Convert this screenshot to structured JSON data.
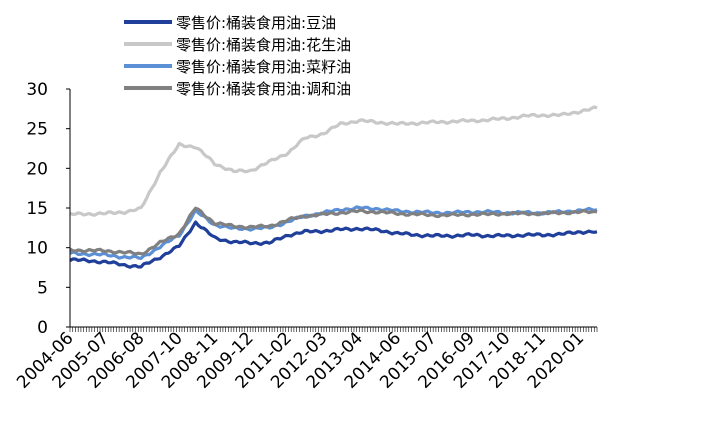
{
  "chart_data": {
    "type": "line",
    "title": "",
    "xlabel": "",
    "ylabel": "",
    "ylim": [
      0,
      30
    ],
    "y_ticks": [
      0,
      5,
      10,
      15,
      20,
      25,
      30
    ],
    "x_tick_labels": [
      "2004-06",
      "2005-07",
      "2006-08",
      "2007-10",
      "2008-11",
      "2009-12",
      "2011-02",
      "2012-03",
      "2013-04",
      "2014-06",
      "2015-07",
      "2016-09",
      "2017-10",
      "2018-11",
      "2020-01"
    ],
    "grid": false,
    "legend_position": "top",
    "x": [
      "2004-06",
      "2005-07",
      "2006-02",
      "2006-08",
      "2007-03",
      "2007-10",
      "2008-04",
      "2008-11",
      "2009-06",
      "2009-12",
      "2010-07",
      "2011-02",
      "2011-08",
      "2012-03",
      "2012-09",
      "2013-04",
      "2013-11",
      "2014-06",
      "2015-01",
      "2015-07",
      "2016-02",
      "2016-09",
      "2017-03",
      "2017-10",
      "2018-05",
      "2018-11",
      "2019-06",
      "2020-01",
      "2020-07"
    ],
    "series": [
      {
        "name": "零售价:桶装食用油:豆油",
        "color": "#1f3f9a",
        "values": [
          8.5,
          8.2,
          7.8,
          7.6,
          8.8,
          10.2,
          13.2,
          11.2,
          10.7,
          10.6,
          10.6,
          11.6,
          12.0,
          12.1,
          12.3,
          12.4,
          12.2,
          11.8,
          11.6,
          11.5,
          11.5,
          11.6,
          11.5,
          11.5,
          11.6,
          11.6,
          11.7,
          12.0,
          12.0
        ]
      },
      {
        "name": "零售价:桶装食用油:花生油",
        "color": "#c8c8c8",
        "values": [
          14.2,
          14.3,
          14.5,
          14.9,
          19.5,
          23.0,
          22.7,
          20.6,
          19.6,
          19.7,
          20.8,
          22.0,
          23.8,
          24.4,
          25.6,
          26.0,
          25.8,
          25.6,
          25.7,
          25.8,
          25.9,
          26.0,
          26.1,
          26.3,
          26.6,
          26.7,
          26.7,
          27.2,
          27.6
        ]
      },
      {
        "name": "零售价:桶装食用油:菜籽油",
        "color": "#5b8fd6",
        "values": [
          9.3,
          9.1,
          8.8,
          8.7,
          10.1,
          11.6,
          14.6,
          12.9,
          12.4,
          12.4,
          12.5,
          13.3,
          14.0,
          14.4,
          14.8,
          15.0,
          14.9,
          14.6,
          14.5,
          14.4,
          14.4,
          14.5,
          14.5,
          14.4,
          14.4,
          14.4,
          14.5,
          14.7,
          14.8
        ]
      },
      {
        "name": "零售价:桶装食用油:调和油",
        "color": "#808080",
        "values": [
          9.7,
          9.6,
          9.4,
          9.2,
          10.6,
          11.8,
          15.0,
          13.1,
          12.7,
          12.6,
          12.7,
          13.5,
          14.0,
          14.2,
          14.4,
          14.6,
          14.5,
          14.3,
          14.2,
          14.1,
          14.1,
          14.2,
          14.2,
          14.3,
          14.3,
          14.3,
          14.4,
          14.5,
          14.5
        ]
      }
    ]
  }
}
